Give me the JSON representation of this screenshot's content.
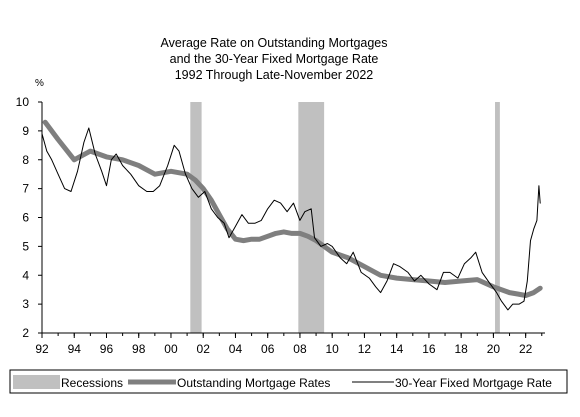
{
  "chart_data": {
    "type": "line",
    "title_lines": [
      "Average Rate on Outstanding Mortgages",
      "and the 30-Year Fixed Mortgage Rate",
      "1992 Through Late-November 2022"
    ],
    "y_unit": "%",
    "ylim": [
      2,
      10
    ],
    "y_ticks": [
      2,
      3,
      4,
      5,
      6,
      7,
      8,
      9,
      10
    ],
    "xlim": [
      1992,
      2023.2
    ],
    "x_ticks": [
      1992,
      1994,
      1996,
      1998,
      2000,
      2002,
      2004,
      2006,
      2008,
      2010,
      2012,
      2014,
      2016,
      2018,
      2020,
      2022
    ],
    "x_tick_labels": [
      "92",
      "94",
      "96",
      "98",
      "00",
      "02",
      "04",
      "06",
      "08",
      "10",
      "12",
      "14",
      "16",
      "18",
      "20",
      "22"
    ],
    "recessions": [
      [
        2001.2,
        2001.9
      ],
      [
        2007.9,
        2009.5
      ],
      [
        2020.1,
        2020.4
      ]
    ],
    "grid": false,
    "legend_position": "bottom",
    "series": [
      {
        "name": "Outstanding Mortgage Rates",
        "color": "#7f7f7f",
        "x": [
          1992.2,
          1993,
          1994,
          1995,
          1996,
          1997,
          1998,
          1999,
          2000,
          2001,
          2001.5,
          2002,
          2002.5,
          2003,
          2003.5,
          2004,
          2004.5,
          2005,
          2005.5,
          2006,
          2006.5,
          2007,
          2007.5,
          2008,
          2008.5,
          2009,
          2009.5,
          2010,
          2011,
          2012,
          2013,
          2014,
          2015,
          2016,
          2017,
          2018,
          2019,
          2020,
          2021,
          2021.5,
          2022,
          2022.5,
          2022.9
        ],
        "values": [
          9.3,
          8.7,
          8.0,
          8.3,
          8.1,
          8.0,
          7.8,
          7.5,
          7.6,
          7.5,
          7.3,
          7.0,
          6.6,
          6.1,
          5.6,
          5.25,
          5.2,
          5.25,
          5.25,
          5.35,
          5.45,
          5.5,
          5.45,
          5.45,
          5.35,
          5.2,
          5.0,
          4.8,
          4.6,
          4.3,
          4.0,
          3.9,
          3.85,
          3.8,
          3.75,
          3.8,
          3.85,
          3.6,
          3.4,
          3.35,
          3.3,
          3.4,
          3.55
        ]
      },
      {
        "name": "30-Year Fixed Mortgage Rate",
        "color": "#000000",
        "x": [
          1992.0,
          1992.3,
          1992.6,
          1993.0,
          1993.4,
          1993.8,
          1994.2,
          1994.6,
          1994.9,
          1995.3,
          1995.7,
          1996.0,
          1996.3,
          1996.6,
          1997.0,
          1997.5,
          1998.0,
          1998.5,
          1998.9,
          1999.3,
          1999.8,
          2000.2,
          2000.5,
          2000.9,
          2001.3,
          2001.7,
          2002.1,
          2002.5,
          2002.9,
          2003.3,
          2003.6,
          2004.0,
          2004.4,
          2004.8,
          2005.2,
          2005.6,
          2006.0,
          2006.4,
          2006.8,
          2007.2,
          2007.6,
          2008.0,
          2008.3,
          2008.7,
          2008.9,
          2009.3,
          2009.7,
          2010.0,
          2010.5,
          2010.9,
          2011.3,
          2011.8,
          2012.3,
          2012.7,
          2013.0,
          2013.4,
          2013.8,
          2014.2,
          2014.7,
          2015.1,
          2015.5,
          2016.0,
          2016.5,
          2016.9,
          2017.3,
          2017.8,
          2018.2,
          2018.6,
          2018.9,
          2019.3,
          2019.8,
          2020.2,
          2020.5,
          2020.9,
          2021.2,
          2021.6,
          2021.9,
          2022.1,
          2022.3,
          2022.5,
          2022.7,
          2022.82,
          2022.9
        ],
        "values": [
          8.9,
          8.3,
          8.0,
          7.5,
          7.0,
          6.9,
          7.6,
          8.6,
          9.1,
          8.2,
          7.6,
          7.1,
          8.0,
          8.2,
          7.8,
          7.5,
          7.1,
          6.9,
          6.9,
          7.1,
          7.8,
          8.5,
          8.3,
          7.5,
          7.0,
          6.7,
          6.9,
          6.3,
          6.0,
          5.8,
          5.3,
          5.7,
          6.1,
          5.8,
          5.8,
          5.9,
          6.3,
          6.6,
          6.5,
          6.2,
          6.5,
          5.9,
          6.2,
          6.3,
          5.3,
          5.0,
          5.1,
          5.0,
          4.6,
          4.4,
          4.8,
          4.1,
          3.9,
          3.6,
          3.4,
          3.8,
          4.4,
          4.3,
          4.1,
          3.8,
          4.0,
          3.7,
          3.5,
          4.1,
          4.1,
          3.9,
          4.4,
          4.6,
          4.8,
          4.1,
          3.7,
          3.4,
          3.1,
          2.8,
          3.0,
          3.0,
          3.1,
          3.8,
          5.2,
          5.6,
          5.9,
          7.1,
          6.5
        ]
      }
    ],
    "legend": [
      {
        "label": "Recessions",
        "kind": "band",
        "color": "#c0c0c0"
      },
      {
        "label": "Outstanding Mortgage Rates",
        "kind": "thick-line",
        "color": "#7f7f7f"
      },
      {
        "label": "30-Year Fixed Mortgage Rate",
        "kind": "thin-line",
        "color": "#000000"
      }
    ]
  }
}
